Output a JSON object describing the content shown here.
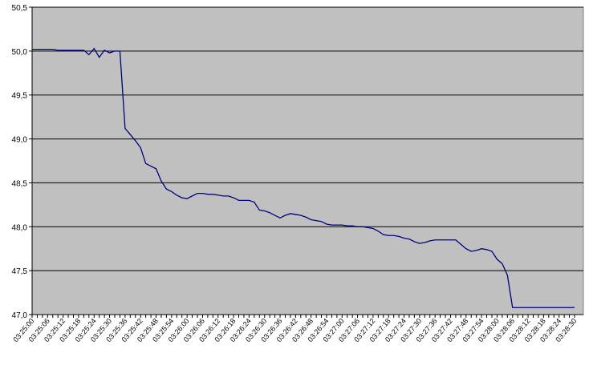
{
  "chart_data": {
    "type": "line",
    "categories": [
      "03:25:00",
      null,
      null,
      "03:25:06",
      null,
      null,
      "03:25:12",
      null,
      null,
      "03:25:18",
      null,
      null,
      "03:25:24",
      null,
      null,
      "03:25:30",
      null,
      null,
      "03:25:36",
      null,
      null,
      "03:25:42",
      null,
      null,
      "03:25:48",
      null,
      null,
      "03:25:54",
      null,
      null,
      "03:26:00",
      null,
      null,
      "03:26:06",
      null,
      null,
      "03:26:12",
      null,
      null,
      "03:26:18",
      null,
      null,
      "03:26:24",
      null,
      null,
      "03:26:30",
      null,
      null,
      "03:26:36",
      null,
      null,
      "03:26:42",
      null,
      null,
      "03:26:48",
      null,
      null,
      "03:26:54",
      null,
      null,
      "03:27:00",
      null,
      null,
      "03:27:06",
      null,
      null,
      "03:27:12",
      null,
      null,
      "03:27:18",
      null,
      null,
      "03:27:24",
      null,
      null,
      "03:27:30",
      null,
      null,
      "03:27:36",
      null,
      null,
      "03:27:42",
      null,
      null,
      "03:27:48",
      null,
      null,
      "03:27:54",
      null,
      null,
      "03:28:00",
      null,
      null,
      "03:28:06",
      null,
      null,
      "03:28:12",
      null,
      null,
      "03:28:18",
      null,
      null,
      "03:28:24",
      null,
      null,
      "03:28:30"
    ],
    "values": [
      50.02,
      50.02,
      50.02,
      50.02,
      50.02,
      50.01,
      50.01,
      50.01,
      50.01,
      50.01,
      50.01,
      49.96,
      50.03,
      49.93,
      50.01,
      49.98,
      50.0,
      50.0,
      49.12,
      49.05,
      48.98,
      48.9,
      48.72,
      48.69,
      48.66,
      48.52,
      48.43,
      48.4,
      48.36,
      48.33,
      48.32,
      48.35,
      48.38,
      48.38,
      48.37,
      48.37,
      48.36,
      48.35,
      48.35,
      48.33,
      48.3,
      48.3,
      48.3,
      48.28,
      48.19,
      48.18,
      48.16,
      48.13,
      48.1,
      48.13,
      48.15,
      48.14,
      48.13,
      48.11,
      48.08,
      48.07,
      48.06,
      48.03,
      48.02,
      48.02,
      48.02,
      48.01,
      48.01,
      48.0,
      48.0,
      47.99,
      47.98,
      47.95,
      47.91,
      47.9,
      47.9,
      47.89,
      47.87,
      47.86,
      47.83,
      47.81,
      47.82,
      47.84,
      47.85,
      47.85,
      47.85,
      47.85,
      47.85,
      47.8,
      47.75,
      47.72,
      47.73,
      47.75,
      47.74,
      47.72,
      47.63,
      47.58,
      47.45,
      47.08,
      47.08,
      47.08,
      47.08,
      47.08,
      47.08,
      47.08,
      47.08,
      47.08,
      47.08,
      47.08,
      47.08,
      47.08
    ],
    "color": "#000080",
    "ylim": [
      47.0,
      50.5
    ],
    "yticks": [
      {
        "value": 47.0,
        "label": "47,0"
      },
      {
        "value": 47.5,
        "label": "47,5"
      },
      {
        "value": 48.0,
        "label": "48,0"
      },
      {
        "value": 48.5,
        "label": "48,5"
      },
      {
        "value": 49.0,
        "label": "49,0"
      },
      {
        "value": 49.5,
        "label": "49,5"
      },
      {
        "value": 50.0,
        "label": "50,0"
      },
      {
        "value": 50.5,
        "label": "50,5"
      }
    ],
    "grid": true
  }
}
